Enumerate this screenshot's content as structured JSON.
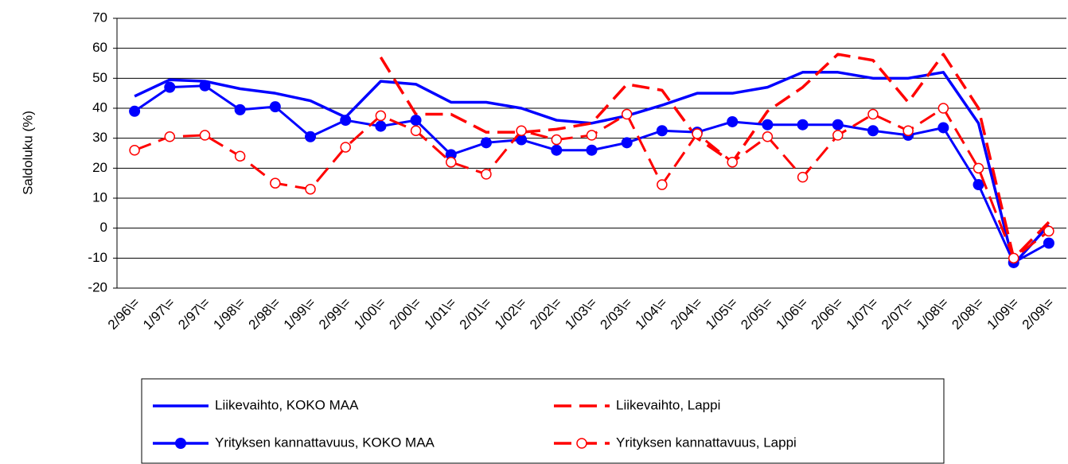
{
  "chart_data": {
    "type": "line",
    "y_label": "Saldoluku (%)",
    "categories": [
      "2/96\\=",
      "1/97\\=",
      "2/97\\=",
      "1/98\\=",
      "2/98\\=",
      "1/99\\=",
      "2/99\\=",
      "1/00\\=",
      "2/00\\=",
      "1/01\\=",
      "2/01\\=",
      "1/02\\=",
      "2/02\\=",
      "1/03\\=",
      "2/03\\=",
      "1/04\\=",
      "2/04\\=",
      "1/05\\=",
      "2/05\\=",
      "1/06\\=",
      "2/06\\=",
      "1/07\\=",
      "2/07\\=",
      "1/08\\=",
      "2/08\\=",
      "1/09\\=",
      "2/09\\="
    ],
    "series": [
      {
        "name": "Liikevaihto, KOKO MAA",
        "color": "#0000ff",
        "line_style": "solid",
        "marker": "none",
        "values": [
          44,
          49.5,
          49,
          46.5,
          45,
          42.5,
          37,
          49,
          48,
          42,
          42,
          40,
          36,
          35,
          37.5,
          41,
          45,
          45,
          47,
          52,
          52,
          50,
          50,
          52,
          35,
          -12,
          1
        ]
      },
      {
        "name": "Liikevaihto, Lappi",
        "color": "#ff0000",
        "line_style": "dashed",
        "marker": "none",
        "values": [
          null,
          null,
          null,
          null,
          null,
          null,
          null,
          57,
          38,
          38,
          32,
          32,
          33,
          35,
          48,
          46,
          30,
          22,
          39,
          47,
          58,
          56,
          42,
          58,
          40,
          -10,
          2
        ]
      },
      {
        "name": "Yrityksen kannattavuus, KOKO MAA",
        "color": "#0000ff",
        "line_style": "solid",
        "marker": "filled-circle",
        "values": [
          39,
          47,
          47.5,
          39.5,
          40.5,
          30.5,
          36,
          34,
          36,
          24.5,
          28.5,
          29.5,
          26,
          26,
          28.5,
          32.5,
          32,
          35.5,
          34.5,
          34.5,
          34.5,
          32.5,
          31,
          33.5,
          14.5,
          -11.5,
          -5
        ]
      },
      {
        "name": "Yrityksen kannattavuus, Lappi",
        "color": "#ff0000",
        "line_style": "dashed",
        "marker": "open-circle",
        "values": [
          26,
          30.5,
          31,
          24,
          15,
          13,
          27,
          37.5,
          32.5,
          22,
          18,
          32.5,
          29.5,
          31,
          38,
          14.5,
          31.5,
          22,
          30.5,
          17,
          31,
          38,
          32.5,
          40,
          20,
          -10,
          -1
        ]
      }
    ],
    "ylim": [
      -20,
      70
    ],
    "yticks": [
      -20,
      -10,
      0,
      10,
      20,
      30,
      40,
      50,
      60,
      70
    ],
    "grid": true
  }
}
